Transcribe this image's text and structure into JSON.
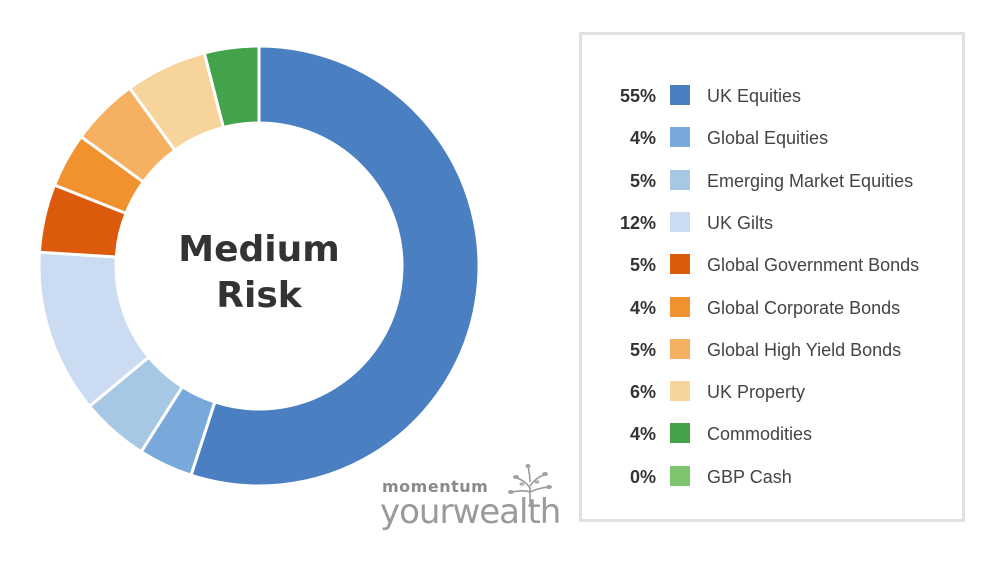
{
  "chart_data": {
    "type": "pie",
    "variant": "donut",
    "center_label": [
      "Medium",
      "Risk"
    ],
    "legend_position": "right",
    "slices": [
      {
        "label": "UK Equities",
        "value": 55,
        "pct_label": "55%",
        "color": "#4a7fc1"
      },
      {
        "label": "Global Equities",
        "value": 4,
        "pct_label": "4%",
        "color": "#79a9da"
      },
      {
        "label": "Emerging Market Equities",
        "value": 5,
        "pct_label": "5%",
        "color": "#a6c8e5"
      },
      {
        "label": "UK Gilts",
        "value": 12,
        "pct_label": "12%",
        "color": "#cbdcf2"
      },
      {
        "label": "Global Government Bonds",
        "value": 5,
        "pct_label": "5%",
        "color": "#db5a0c"
      },
      {
        "label": "Global Corporate Bonds",
        "value": 4,
        "pct_label": "4%",
        "color": "#f2922f"
      },
      {
        "label": "Global High Yield Bonds",
        "value": 5,
        "pct_label": "5%",
        "color": "#f5b161"
      },
      {
        "label": "UK Property",
        "value": 6,
        "pct_label": "6%",
        "color": "#f7d49c"
      },
      {
        "label": "Commodities",
        "value": 4,
        "pct_label": "4%",
        "color": "#43a34a"
      },
      {
        "label": "GBP Cash",
        "value": 0,
        "pct_label": "0%",
        "color": "#7fc46e"
      }
    ]
  },
  "brand": {
    "line1": "momentum",
    "line2": "yourwealth"
  }
}
